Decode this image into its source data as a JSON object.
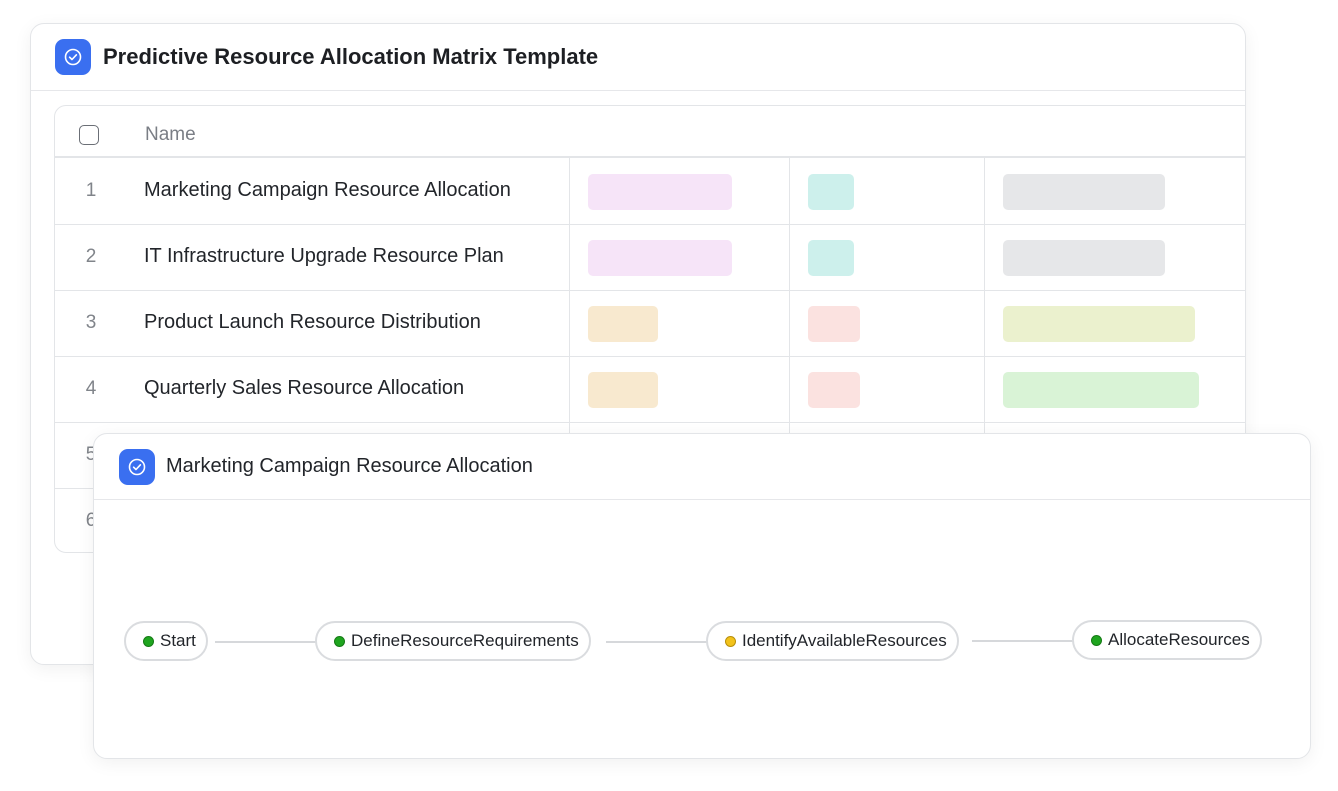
{
  "main": {
    "title": "Predictive Resource Allocation Matrix Template",
    "table": {
      "name_header": "Name",
      "rows": [
        {
          "num": "1",
          "name": "Marketing Campaign Resource Allocation"
        },
        {
          "num": "2",
          "name": "IT Infrastructure Upgrade Resource Plan"
        },
        {
          "num": "3",
          "name": "Product Launch Resource Distribution"
        },
        {
          "num": "4",
          "name": "Quarterly Sales Resource Allocation"
        },
        {
          "num": "5",
          "name": ""
        },
        {
          "num": "6",
          "name": ""
        }
      ]
    },
    "tag_colors": {
      "pink": "#f6e4f8",
      "teal": "#cdf0ec",
      "gray": "#e6e7e9",
      "peach": "#f8e9cf",
      "rose": "#fbe2e0",
      "olive": "#ebf1ce",
      "green": "#d9f3d6"
    }
  },
  "flow": {
    "title": "Marketing Campaign Resource Allocation",
    "nodes": [
      {
        "label": "Start",
        "status_color": "#1fa51f"
      },
      {
        "label": "DefineResourceRequirements",
        "status_color": "#1fa51f"
      },
      {
        "label": "IdentifyAvailableResources",
        "status_color": "#f2c21b"
      },
      {
        "label": "AllocateResources",
        "status_color": "#1fa51f"
      }
    ]
  },
  "icons": {
    "app": "check-circle-icon"
  },
  "accent": "#3a6ff0"
}
